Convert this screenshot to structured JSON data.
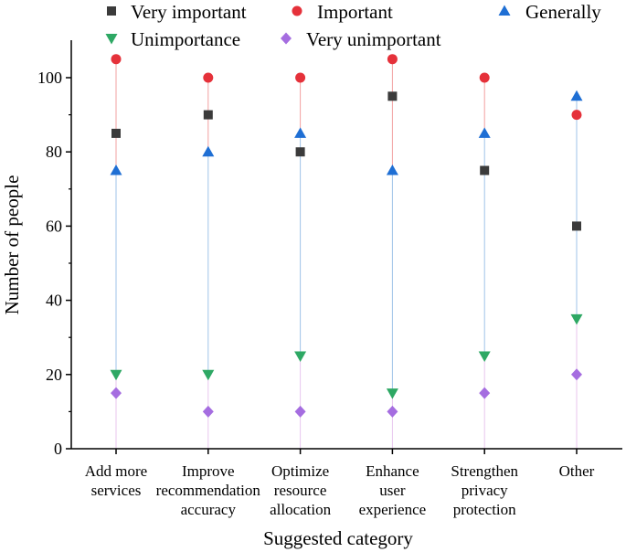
{
  "chart_data": {
    "type": "scatter",
    "title": "",
    "xlabel": "Suggested category",
    "ylabel": "Number of people",
    "ylim": [
      0,
      110
    ],
    "yticks": [
      0,
      20,
      40,
      60,
      80,
      100
    ],
    "grid": false,
    "legend_position": "top",
    "categories": [
      [
        "Add more",
        "services"
      ],
      [
        "Improve",
        "recommendation",
        "accuracy"
      ],
      [
        "Optimize",
        "resource",
        "allocation"
      ],
      [
        "Enhance",
        "user",
        "experience"
      ],
      [
        "Strengthen",
        "privacy",
        "protection"
      ],
      [
        "Other"
      ]
    ],
    "series": [
      {
        "name": "Very important",
        "marker": "square",
        "color": "#3b3b3b",
        "values": [
          85,
          90,
          80,
          95,
          75,
          60
        ]
      },
      {
        "name": "Important",
        "marker": "circle",
        "color": "#e5313a",
        "values": [
          105,
          100,
          100,
          105,
          100,
          90
        ]
      },
      {
        "name": "Generally",
        "marker": "triangle-up",
        "color": "#1f6fd4",
        "values": [
          75,
          80,
          85,
          75,
          85,
          95
        ]
      },
      {
        "name": "Unimportance",
        "marker": "triangle-down",
        "color": "#2ea864",
        "values": [
          20,
          20,
          25,
          15,
          25,
          35
        ]
      },
      {
        "name": "Very unimportant",
        "marker": "diamond",
        "color": "#a56de0",
        "values": [
          15,
          10,
          10,
          10,
          15,
          20
        ]
      }
    ],
    "drop_lines": [
      {
        "from": "Important",
        "to": "Generally",
        "color": "#f2a0a0"
      },
      {
        "from": "Generally",
        "to": "Unimportance",
        "color": "#9fc3e8"
      },
      {
        "from": "Unimportance",
        "to": "zero",
        "color": "#e8c6ee"
      }
    ]
  }
}
